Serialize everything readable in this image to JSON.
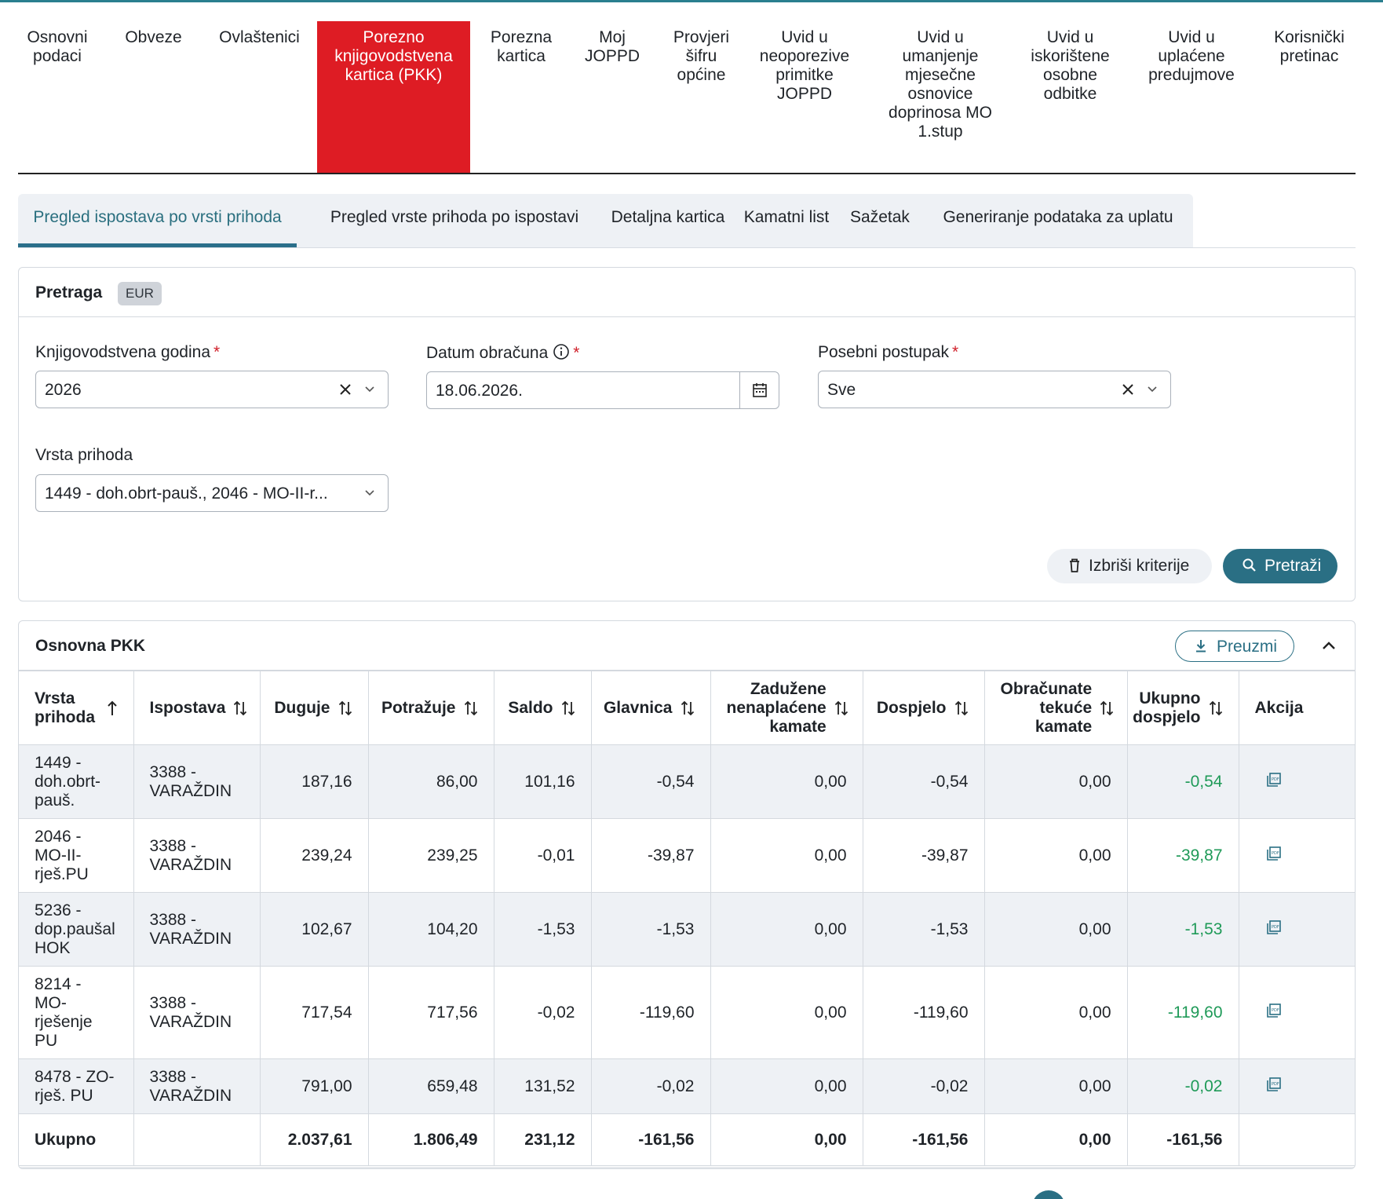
{
  "top_nav": [
    {
      "label": "Osnovni\npodaci",
      "active": false
    },
    {
      "label": "Obveze",
      "active": false
    },
    {
      "label": "Ovlaštenici",
      "active": false
    },
    {
      "label": "Porezno\nknjigovodstvena\nkartica (PKK)",
      "active": true
    },
    {
      "label": "Porezna\nkartica",
      "active": false
    },
    {
      "label": "Moj\nJOPPD",
      "active": false
    },
    {
      "label": "Provjeri\nšifru\nopćine",
      "active": false
    },
    {
      "label": "Uvid u\nneoporezive\nprimitke\nJOPPD",
      "active": false
    },
    {
      "label": "Uvid u\numanjenje\nmjesečne\nosnovice\ndoprinosa MO\n1.stup",
      "active": false
    },
    {
      "label": "Uvid u\niskorištene\nosobne\nodbitke",
      "active": false
    },
    {
      "label": "Uvid u\nuplaćene\npredujmove",
      "active": false
    },
    {
      "label": "Korisnički\npretinac",
      "active": false
    }
  ],
  "sub_tabs": [
    {
      "label": "Pregled ispostava po vrsti prihoda",
      "active": true
    },
    {
      "label": "Pregled vrste prihoda po ispostavi",
      "active": false
    },
    {
      "label": "Detaljna kartica",
      "active": false
    },
    {
      "label": "Kamatni list",
      "active": false
    },
    {
      "label": "Sažetak",
      "active": false
    },
    {
      "label": "Generiranje podataka za uplatu",
      "active": false
    }
  ],
  "search": {
    "title": "Pretraga",
    "currency_badge": "EUR",
    "year_label": "Knjigovodstvena godina",
    "year_value": "2026",
    "date_label": "Datum obračuna",
    "date_value": "18.06.2026.",
    "special_label": "Posebni postupak",
    "special_value": "Sve",
    "income_label": "Vrsta prihoda",
    "income_value": "1449 - doh.obrt-pauš., 2046 - MO-II-r...",
    "required_mark": "*",
    "clear_button": "Izbriši kriterije",
    "search_button": "Pretraži"
  },
  "table_section": {
    "title": "Osnovna PKK",
    "download_button": "Preuzmi",
    "columns": [
      "Vrsta prihoda",
      "Ispostava",
      "Duguje",
      "Potražuje",
      "Saldo",
      "Glavnica",
      "Zadužene nenaplaćene kamate",
      "Dospjelo",
      "Obračunate tekuće kamate",
      "Ukupno dospjelo",
      "Akcija"
    ],
    "rows": [
      {
        "vrsta": "1449 - doh.obrt-pauš.",
        "ispostava": "3388 - VARAŽDIN",
        "duguje": "187,16",
        "potrazuje": "86,00",
        "saldo": "101,16",
        "glavnica": "-0,54",
        "kamate": "0,00",
        "dospjelo": "-0,54",
        "tekuce": "0,00",
        "ukupno": "-0,54"
      },
      {
        "vrsta": "2046 - MO-II-rješ.PU",
        "ispostava": "3388 - VARAŽDIN",
        "duguje": "239,24",
        "potrazuje": "239,25",
        "saldo": "-0,01",
        "glavnica": "-39,87",
        "kamate": "0,00",
        "dospjelo": "-39,87",
        "tekuce": "0,00",
        "ukupno": "-39,87"
      },
      {
        "vrsta": "5236 - dop.paušal HOK",
        "ispostava": "3388 - VARAŽDIN",
        "duguje": "102,67",
        "potrazuje": "104,20",
        "saldo": "-1,53",
        "glavnica": "-1,53",
        "kamate": "0,00",
        "dospjelo": "-1,53",
        "tekuce": "0,00",
        "ukupno": "-1,53"
      },
      {
        "vrsta": "8214 - MO-rješenje PU",
        "ispostava": "3388 - VARAŽDIN",
        "duguje": "717,54",
        "potrazuje": "717,56",
        "saldo": "-0,02",
        "glavnica": "-119,60",
        "kamate": "0,00",
        "dospjelo": "-119,60",
        "tekuce": "0,00",
        "ukupno": "-119,60"
      },
      {
        "vrsta": "8478 - ZO-rješ. PU",
        "ispostava": "3388 - VARAŽDIN",
        "duguje": "791,00",
        "potrazuje": "659,48",
        "saldo": "131,52",
        "glavnica": "-0,02",
        "kamate": "0,00",
        "dospjelo": "-0,02",
        "tekuce": "0,00",
        "ukupno": "-0,02"
      }
    ],
    "total": {
      "label": "Ukupno",
      "duguje": "2.037,61",
      "potrazuje": "1.806,49",
      "saldo": "231,12",
      "glavnica": "-161,56",
      "kamate": "0,00",
      "dospjelo": "-161,56",
      "tekuce": "0,00",
      "ukupno": "-161,56"
    }
  },
  "colors": {
    "accent": "#2a6f84",
    "active_nav": "#de1c24",
    "positive_green": "#1f9a58",
    "row_stripe": "#eef1f5"
  }
}
